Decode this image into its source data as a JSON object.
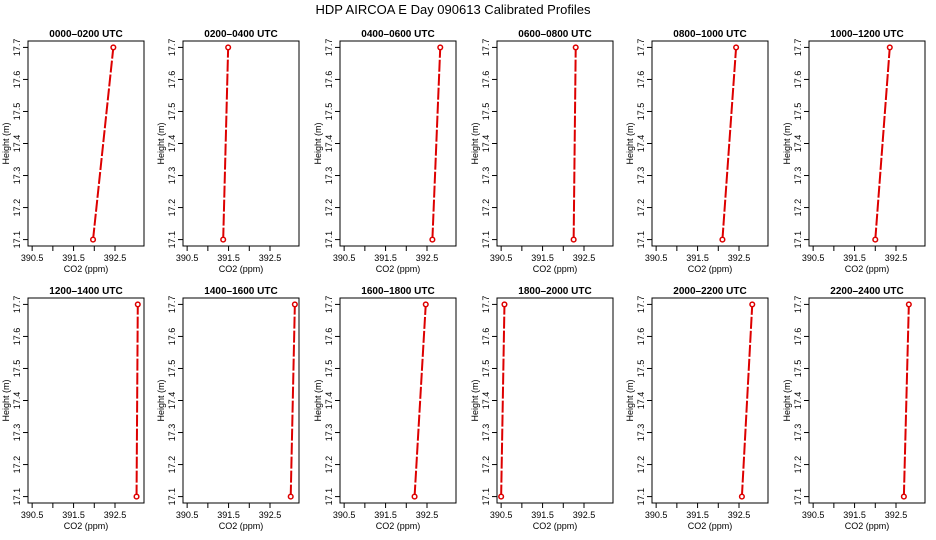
{
  "figure": {
    "title": "HDP AIRCOA E  Day 090613  Calibrated Profiles"
  },
  "chart_data": [
    {
      "type": "line",
      "title": "0000–0200 UTC",
      "xlabel": "CO2 (ppm)",
      "ylabel": "Height (m)",
      "xlim": [
        390.4,
        393.2
      ],
      "ylim": [
        17.08,
        17.72
      ],
      "xticks": [
        "390.5",
        "391.5",
        "392.5"
      ],
      "xticks_unlabeled": [
        391.0,
        392.0
      ],
      "yticks": [
        "17.1",
        "17.2",
        "17.3",
        "17.4",
        "17.5",
        "17.6",
        "17.7"
      ],
      "series": [
        {
          "x": [
            391.97,
            392.46
          ],
          "y": [
            17.1,
            17.7
          ]
        }
      ]
    },
    {
      "type": "line",
      "title": "0200–0400 UTC",
      "xlabel": "CO2 (ppm)",
      "ylabel": "Height (m)",
      "xlim": [
        390.4,
        393.2
      ],
      "ylim": [
        17.08,
        17.72
      ],
      "xticks": [
        "390.5",
        "391.5",
        "392.5"
      ],
      "xticks_unlabeled": [
        391.0,
        392.0
      ],
      "yticks": [
        "17.1",
        "17.2",
        "17.3",
        "17.4",
        "17.5",
        "17.6",
        "17.7"
      ],
      "series": [
        {
          "x": [
            391.37,
            391.49
          ],
          "y": [
            17.1,
            17.7
          ]
        }
      ]
    },
    {
      "type": "line",
      "title": "0400–0600 UTC",
      "xlabel": "CO2 (ppm)",
      "ylabel": "Height (m)",
      "xlim": [
        390.4,
        393.2
      ],
      "ylim": [
        17.08,
        17.72
      ],
      "xticks": [
        "390.5",
        "391.5",
        "392.5"
      ],
      "xticks_unlabeled": [
        391.0,
        392.0
      ],
      "yticks": [
        "17.1",
        "17.2",
        "17.3",
        "17.4",
        "17.5",
        "17.6",
        "17.7"
      ],
      "series": [
        {
          "x": [
            392.63,
            392.82
          ],
          "y": [
            17.1,
            17.7
          ]
        }
      ]
    },
    {
      "type": "line",
      "title": "0600–0800 UTC",
      "xlabel": "CO2 (ppm)",
      "ylabel": "Height (m)",
      "xlim": [
        390.4,
        393.2
      ],
      "ylim": [
        17.08,
        17.72
      ],
      "xticks": [
        "390.5",
        "391.5",
        "392.5"
      ],
      "xticks_unlabeled": [
        391.0,
        392.0
      ],
      "yticks": [
        "17.1",
        "17.2",
        "17.3",
        "17.4",
        "17.5",
        "17.6",
        "17.7"
      ],
      "series": [
        {
          "x": [
            392.25,
            392.3
          ],
          "y": [
            17.1,
            17.7
          ]
        }
      ]
    },
    {
      "type": "line",
      "title": "0800–1000 UTC",
      "xlabel": "CO2 (ppm)",
      "ylabel": "Height (m)",
      "xlim": [
        390.4,
        393.2
      ],
      "ylim": [
        17.08,
        17.72
      ],
      "xticks": [
        "390.5",
        "391.5",
        "392.5"
      ],
      "xticks_unlabeled": [
        391.0,
        392.0
      ],
      "yticks": [
        "17.1",
        "17.2",
        "17.3",
        "17.4",
        "17.5",
        "17.6",
        "17.7"
      ],
      "series": [
        {
          "x": [
            392.1,
            392.43
          ],
          "y": [
            17.1,
            17.7
          ]
        }
      ]
    },
    {
      "type": "line",
      "title": "1000–1200 UTC",
      "xlabel": "CO2 (ppm)",
      "ylabel": "Height (m)",
      "xlim": [
        390.4,
        393.2
      ],
      "ylim": [
        17.08,
        17.72
      ],
      "xticks": [
        "390.5",
        "391.5",
        "392.5"
      ],
      "xticks_unlabeled": [
        391.0,
        392.0
      ],
      "yticks": [
        "17.1",
        "17.2",
        "17.3",
        "17.4",
        "17.5",
        "17.6",
        "17.7"
      ],
      "series": [
        {
          "x": [
            392.0,
            392.35
          ],
          "y": [
            17.1,
            17.7
          ]
        }
      ]
    },
    {
      "type": "line",
      "title": "1200–1400 UTC",
      "xlabel": "CO2 (ppm)",
      "ylabel": "Height (m)",
      "xlim": [
        390.4,
        393.2
      ],
      "ylim": [
        17.08,
        17.72
      ],
      "xticks": [
        "390.5",
        "391.5",
        "392.5"
      ],
      "xticks_unlabeled": [
        391.0,
        392.0
      ],
      "yticks": [
        "17.1",
        "17.2",
        "17.3",
        "17.4",
        "17.5",
        "17.6",
        "17.7"
      ],
      "series": [
        {
          "x": [
            393.02,
            393.05
          ],
          "y": [
            17.1,
            17.7
          ]
        }
      ]
    },
    {
      "type": "line",
      "title": "1400–1600 UTC",
      "xlabel": "CO2 (ppm)",
      "ylabel": "Height (m)",
      "xlim": [
        390.4,
        393.2
      ],
      "ylim": [
        17.08,
        17.72
      ],
      "xticks": [
        "390.5",
        "391.5",
        "392.5"
      ],
      "xticks_unlabeled": [
        391.0,
        392.0
      ],
      "yticks": [
        "17.1",
        "17.2",
        "17.3",
        "17.4",
        "17.5",
        "17.6",
        "17.7"
      ],
      "series": [
        {
          "x": [
            393.0,
            393.1
          ],
          "y": [
            17.1,
            17.7
          ]
        }
      ]
    },
    {
      "type": "line",
      "title": "1600–1800 UTC",
      "xlabel": "CO2 (ppm)",
      "ylabel": "Height (m)",
      "xlim": [
        390.4,
        393.2
      ],
      "ylim": [
        17.08,
        17.72
      ],
      "xticks": [
        "390.5",
        "391.5",
        "392.5"
      ],
      "xticks_unlabeled": [
        391.0,
        392.0
      ],
      "yticks": [
        "17.1",
        "17.2",
        "17.3",
        "17.4",
        "17.5",
        "17.6",
        "17.7"
      ],
      "series": [
        {
          "x": [
            392.2,
            392.47
          ],
          "y": [
            17.1,
            17.7
          ]
        }
      ]
    },
    {
      "type": "line",
      "title": "1800–2000 UTC",
      "xlabel": "CO2 (ppm)",
      "ylabel": "Height (m)",
      "xlim": [
        390.4,
        393.2
      ],
      "ylim": [
        17.08,
        17.72
      ],
      "xticks": [
        "390.5",
        "391.5",
        "392.5"
      ],
      "xticks_unlabeled": [
        391.0,
        392.0
      ],
      "yticks": [
        "17.1",
        "17.2",
        "17.3",
        "17.4",
        "17.5",
        "17.6",
        "17.7"
      ],
      "series": [
        {
          "x": [
            390.5,
            390.58
          ],
          "y": [
            17.1,
            17.7
          ]
        }
      ]
    },
    {
      "type": "line",
      "title": "2000–2200 UTC",
      "xlabel": "CO2 (ppm)",
      "ylabel": "Height (m)",
      "xlim": [
        390.4,
        393.2
      ],
      "ylim": [
        17.08,
        17.72
      ],
      "xticks": [
        "390.5",
        "391.5",
        "392.5"
      ],
      "xticks_unlabeled": [
        391.0,
        392.0
      ],
      "yticks": [
        "17.1",
        "17.2",
        "17.3",
        "17.4",
        "17.5",
        "17.6",
        "17.7"
      ],
      "series": [
        {
          "x": [
            392.57,
            392.82
          ],
          "y": [
            17.1,
            17.7
          ]
        }
      ]
    },
    {
      "type": "line",
      "title": "2200–2400 UTC",
      "xlabel": "CO2 (ppm)",
      "ylabel": "Height (m)",
      "xlim": [
        390.4,
        393.2
      ],
      "ylim": [
        17.08,
        17.72
      ],
      "xticks": [
        "390.5",
        "391.5",
        "392.5"
      ],
      "xticks_unlabeled": [
        391.0,
        392.0
      ],
      "yticks": [
        "17.1",
        "17.2",
        "17.3",
        "17.4",
        "17.5",
        "17.6",
        "17.7"
      ],
      "series": [
        {
          "x": [
            392.69,
            392.81
          ],
          "y": [
            17.1,
            17.7
          ]
        }
      ]
    }
  ],
  "colors": {
    "series": "#dd0000",
    "axes": "#000000"
  }
}
